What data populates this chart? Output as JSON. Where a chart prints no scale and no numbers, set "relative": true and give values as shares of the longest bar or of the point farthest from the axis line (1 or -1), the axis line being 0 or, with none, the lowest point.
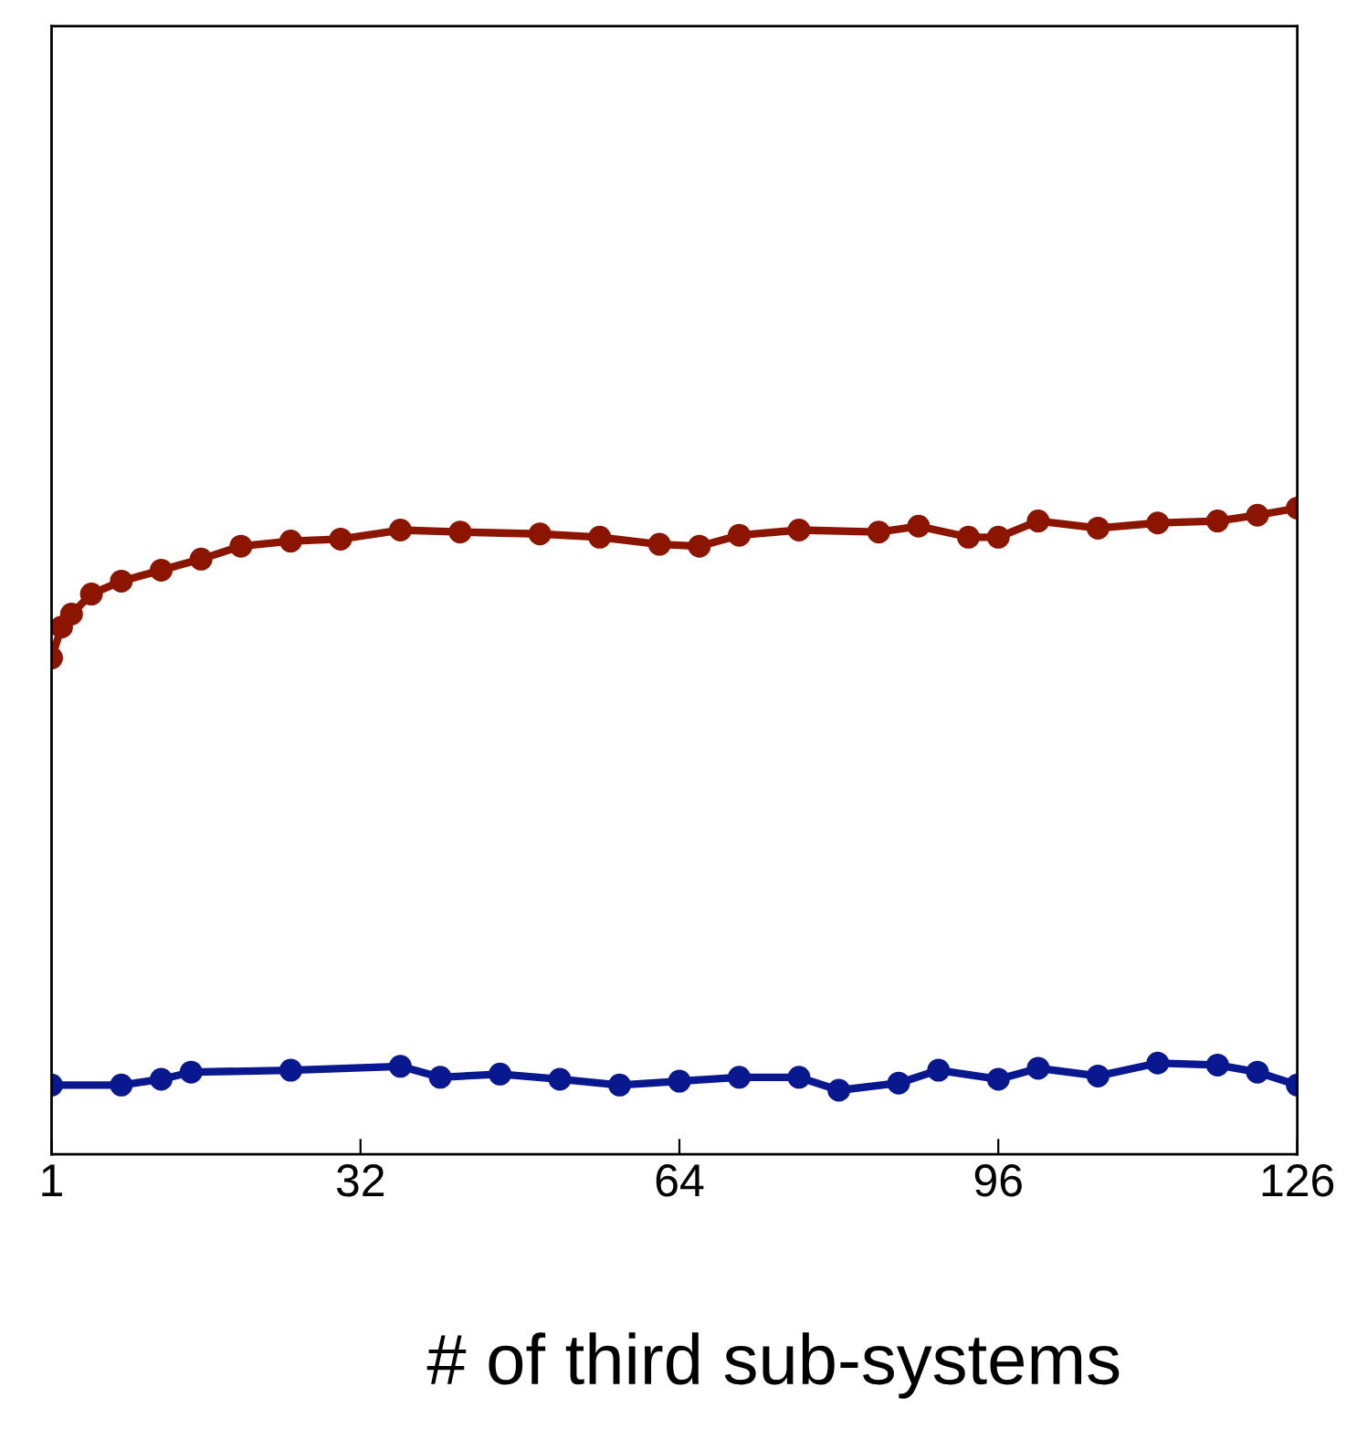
{
  "chart_data": {
    "type": "line",
    "xlabel": "# of third sub-systems",
    "relative": true,
    "xlim": [
      1,
      126
    ],
    "xticks": [
      1,
      32,
      64,
      96,
      126
    ],
    "marker": "circle",
    "line_style": "solid",
    "grid": false,
    "legend": false,
    "series": [
      {
        "color": "#8b1500",
        "x": [
          1,
          2,
          3,
          5,
          8,
          12,
          16,
          20,
          25,
          30,
          36,
          42,
          50,
          56,
          62,
          66,
          70,
          76,
          84,
          88,
          93,
          96,
          100,
          106,
          112,
          118,
          122,
          126
        ],
        "values": [
          0.768,
          0.816,
          0.836,
          0.867,
          0.887,
          0.904,
          0.921,
          0.941,
          0.949,
          0.952,
          0.966,
          0.963,
          0.96,
          0.955,
          0.944,
          0.941,
          0.958,
          0.966,
          0.963,
          0.972,
          0.955,
          0.955,
          0.98,
          0.969,
          0.977,
          0.98,
          0.989,
          1.0
        ]
      },
      {
        "color": "#0a1890",
        "x": [
          1,
          8,
          12,
          15,
          25,
          36,
          40,
          46,
          52,
          58,
          64,
          70,
          76,
          80,
          86,
          90,
          96,
          100,
          106,
          112,
          118,
          122,
          126
        ],
        "values": [
          0.107,
          0.107,
          0.116,
          0.127,
          0.13,
          0.136,
          0.119,
          0.124,
          0.116,
          0.107,
          0.113,
          0.119,
          0.119,
          0.099,
          0.11,
          0.13,
          0.116,
          0.133,
          0.121,
          0.141,
          0.138,
          0.127,
          0.107
        ]
      }
    ]
  }
}
